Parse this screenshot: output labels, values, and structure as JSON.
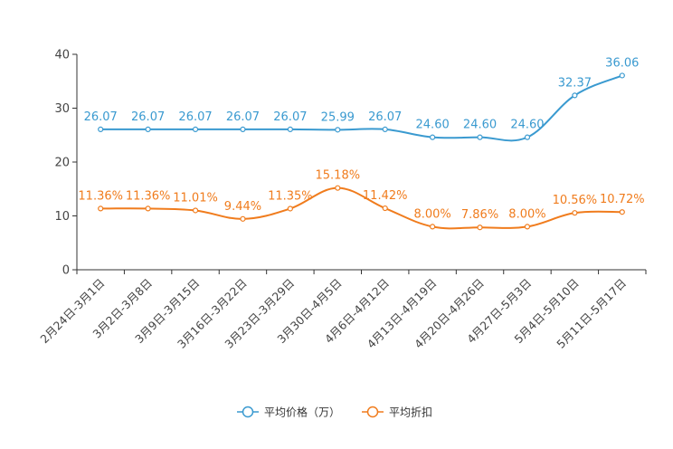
{
  "chart_data": {
    "type": "line",
    "title": "",
    "xlabel": "",
    "ylabel": "",
    "ylim": [
      0,
      40
    ],
    "yticks": [
      0,
      10,
      20,
      30,
      40
    ],
    "grid": false,
    "legend_position": "bottom-center",
    "categories": [
      "2月24日-3月1日",
      "3月2日-3月8日",
      "3月9日-3月15日",
      "3月16日-3月22日",
      "3月23日-3月29日",
      "3月30日-4月5日",
      "4月6日-4月12日",
      "4月13日-4月19日",
      "4月20日-4月26日",
      "4月27日-5月3日",
      "5月4日-5月10日",
      "5月11日-5月17日"
    ],
    "series": [
      {
        "name": "平均价格（万）",
        "color": "#3a9ad0",
        "values": [
          26.07,
          26.07,
          26.07,
          26.07,
          26.07,
          25.99,
          26.07,
          24.6,
          24.6,
          24.6,
          32.37,
          36.06
        ],
        "labels": [
          "26.07",
          "26.07",
          "26.07",
          "26.07",
          "26.07",
          "25.99",
          "26.07",
          "24.60",
          "24.60",
          "24.60",
          "32.37",
          "36.06"
        ]
      },
      {
        "name": "平均折扣",
        "color": "#f07c1d",
        "values": [
          11.36,
          11.36,
          11.01,
          9.44,
          11.35,
          15.18,
          11.42,
          8.0,
          7.86,
          8.0,
          10.56,
          10.72
        ],
        "labels": [
          "11.36%",
          "11.36%",
          "11.01%",
          "9.44%",
          "11.35%",
          "15.18%",
          "11.42%",
          "8.00%",
          "7.86%",
          "8.00%",
          "10.56%",
          "10.72%"
        ]
      }
    ]
  }
}
